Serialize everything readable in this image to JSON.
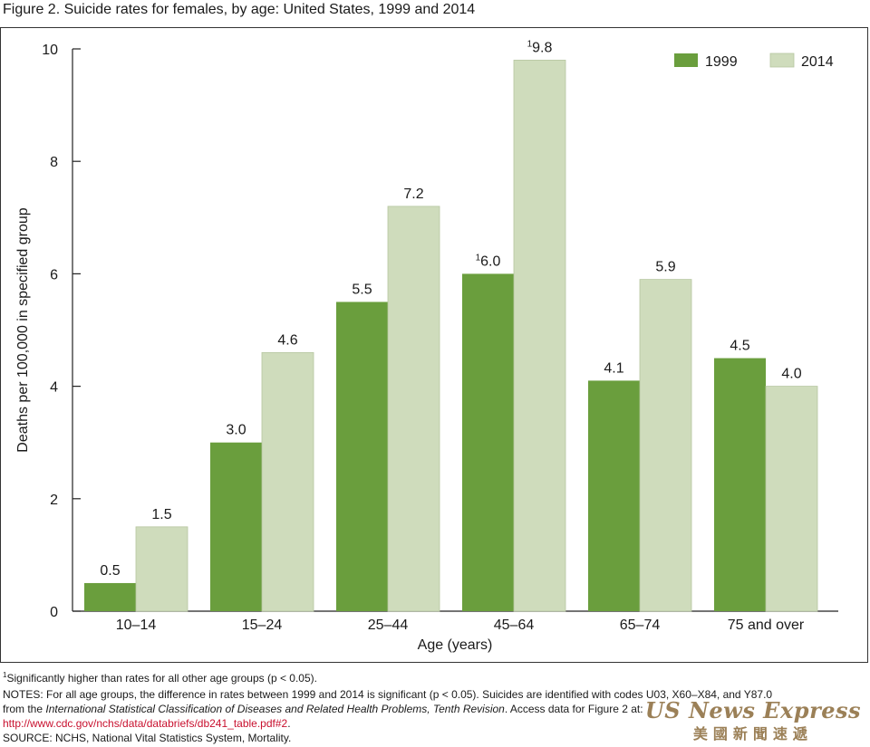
{
  "title": "Figure 2. Suicide rates for females, by age: United States, 1999 and 2014",
  "chart_data": {
    "type": "bar",
    "categories": [
      "10–14",
      "15–24",
      "25–44",
      "45–64",
      "65–74",
      "75 and over"
    ],
    "series": [
      {
        "name": "1999",
        "color": "#6a9e3d",
        "values": [
          0.5,
          3.0,
          5.5,
          6.0,
          4.1,
          4.5
        ],
        "labels": [
          "0.5",
          "3.0",
          "5.5",
          "6.0",
          "4.1",
          "4.5"
        ],
        "label_superscripts": [
          "",
          "",
          "",
          "1",
          "",
          ""
        ]
      },
      {
        "name": "2014",
        "color": "#cfdcbc",
        "values": [
          1.5,
          4.6,
          7.2,
          9.8,
          5.9,
          4.0
        ],
        "labels": [
          "1.5",
          "4.6",
          "7.2",
          "9.8",
          "5.9",
          "4.0"
        ],
        "label_superscripts": [
          "",
          "",
          "",
          "1",
          "",
          ""
        ]
      }
    ],
    "xlabel": "Age (years)",
    "ylabel": "Deaths per 100,000 in specified group",
    "ylim": [
      0,
      10
    ],
    "yticks": [
      "0",
      "2",
      "4",
      "6",
      "8",
      "10"
    ],
    "legend_position": "top-right",
    "grid": false
  },
  "footnotes": {
    "sig_marker": "1",
    "sig_text": "Significantly higher than rates for all other age groups (p < 0.05).",
    "notes_line1": "NOTES: For all age groups, the difference in rates between 1999 and 2014 is significant (p < 0.05). Suicides are identified with codes U03, X60–X84, and Y87.0",
    "notes_line2_pre": "from the ",
    "notes_line2_ital": "International Statistical Classification of Diseases and Related Health Problems, Tenth Revision",
    "notes_line2_post": ". Access data for Figure 2 at:",
    "url": "http://www.cdc.gov/nchs/data/databriefs/db241_table.pdf#2",
    "url_tail": ".",
    "source": "SOURCE: NCHS, National Vital Statistics System, Mortality."
  },
  "watermark": {
    "main": "US News Express",
    "sub": "美國新聞速遞"
  }
}
